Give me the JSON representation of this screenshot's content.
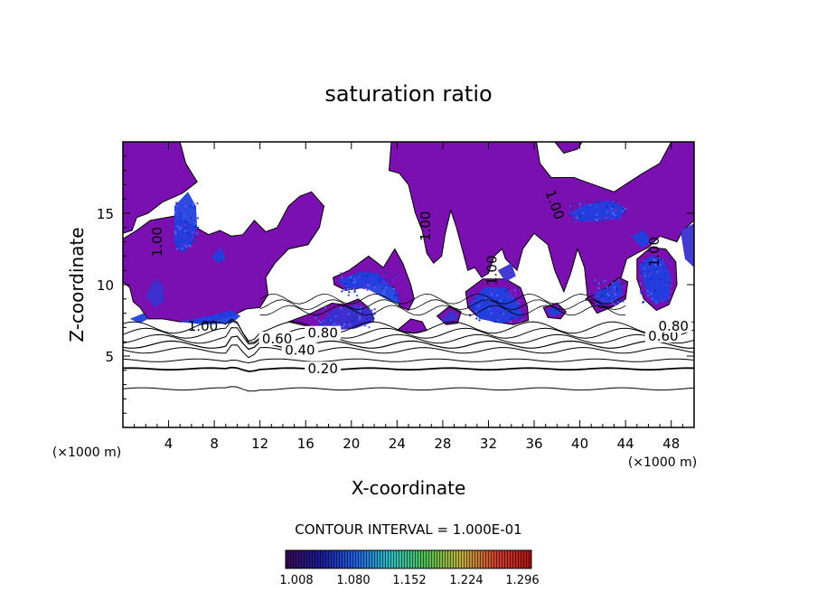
{
  "chart_data": {
    "type": "heatmap",
    "title": "saturation ratio",
    "xlabel": "X-coordinate",
    "ylabel": "Z-coordinate",
    "x_unit": "(×1000 m)",
    "z_unit": "(×1000 m)",
    "xlim": [
      0,
      50
    ],
    "ylim": [
      0,
      20
    ],
    "x_ticks": [
      "4",
      "8",
      "12",
      "16",
      "20",
      "24",
      "28",
      "32",
      "36",
      "40",
      "44",
      "48"
    ],
    "y_ticks": [
      "5",
      "10",
      "15"
    ],
    "contour_interval_label": "CONTOUR INTERVAL = 1.000E-01",
    "contour_labels": [
      {
        "text": "0.20",
        "x": 17.5,
        "z": 4.1
      },
      {
        "text": "0.40",
        "x": 15.5,
        "z": 5.4
      },
      {
        "text": "0.60",
        "x": 13.5,
        "z": 6.2
      },
      {
        "text": "0.80",
        "x": 17.5,
        "z": 6.6
      },
      {
        "text": "1.00",
        "x": 7.0,
        "z": 7.1
      },
      {
        "text": "0.60",
        "x": 47.3,
        "z": 6.4
      },
      {
        "text": "0.80",
        "x": 48.2,
        "z": 7.1
      },
      {
        "text": "1.00",
        "x": 3.0,
        "z": 13.0
      },
      {
        "text": "1.00",
        "x": 26.5,
        "z": 14.1
      },
      {
        "text": "1.00",
        "x": 37.8,
        "z": 15.6
      },
      {
        "text": "1.00",
        "x": 46.5,
        "z": 12.3
      },
      {
        "text": "1.00",
        "x": 32.3,
        "z": 11.0
      }
    ],
    "colorbar": {
      "ticks": [
        "1.008",
        "1.080",
        "1.152",
        "1.224",
        "1.296"
      ],
      "colors": [
        "#3a0a55",
        "#1a1a9a",
        "#2060e0",
        "#30c0c0",
        "#50c050",
        "#c0b040",
        "#d04030",
        "#b01010"
      ]
    },
    "fill_colors": {
      "base": "#7a10b0",
      "blue": "#2040e0",
      "deep_blue": "#3a30d0",
      "contour": "#000000"
    }
  }
}
